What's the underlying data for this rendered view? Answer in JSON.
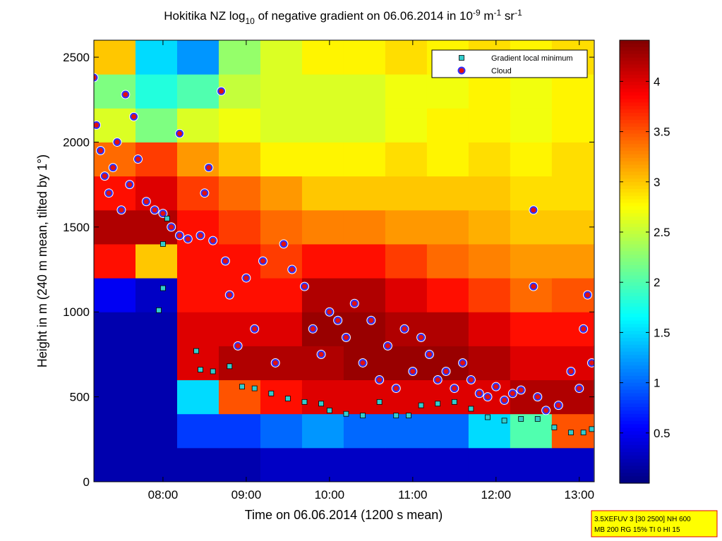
{
  "chart_data": {
    "type": "heatmap",
    "title_segments": [
      "Hokitika NZ log",
      "10",
      " of negative gradient on 06.06.2014 in 10",
      "-9",
      " m",
      "-1",
      " sr",
      "-1"
    ],
    "xlabel": "Time on 06.06.2014 (1200 s mean)",
    "ylabel": "Height in m (240 m mean, tilted by 1°)",
    "xlim": [
      7.17,
      13.18
    ],
    "ylim": [
      0,
      2600
    ],
    "xticks": [
      {
        "value": 8,
        "label": "08:00"
      },
      {
        "value": 9,
        "label": "09:00"
      },
      {
        "value": 10,
        "label": "10:00"
      },
      {
        "value": 11,
        "label": "11:00"
      },
      {
        "value": 12,
        "label": "12:00"
      },
      {
        "value": 13,
        "label": "13:00"
      }
    ],
    "yticks": [
      0,
      500,
      1000,
      1500,
      2000,
      2500
    ],
    "colormap": "jet",
    "clim": [
      0,
      4.41
    ],
    "cticks": [
      0.5,
      1,
      1.5,
      2,
      2.5,
      3,
      3.5,
      4
    ],
    "heatmap": {
      "x": [
        7.42,
        7.92,
        8.42,
        8.92,
        9.42,
        9.92,
        10.42,
        10.92,
        11.42,
        11.92,
        12.42,
        12.92
      ],
      "y": [
        100,
        300,
        500,
        700,
        900,
        1100,
        1300,
        1500,
        1700,
        1900,
        2100,
        2300,
        2500
      ],
      "z": [
        [
          0.2,
          0.2,
          0.2,
          0.2,
          0.3,
          0.3,
          0.3,
          0.3,
          0.3,
          0.3,
          0.3,
          0.3
        ],
        [
          0.2,
          0.2,
          0.8,
          0.8,
          1.0,
          1.2,
          1.0,
          1.0,
          1.0,
          1.5,
          2.0,
          3.5
        ],
        [
          0.2,
          0.2,
          1.5,
          3.5,
          3.8,
          4.0,
          4.0,
          4.0,
          4.0,
          4.0,
          4.2,
          4.2
        ],
        [
          0.2,
          0.2,
          4.0,
          4.2,
          4.2,
          4.2,
          4.3,
          4.3,
          4.3,
          4.2,
          4.0,
          4.0
        ],
        [
          0.2,
          0.2,
          4.0,
          4.0,
          4.0,
          4.3,
          4.3,
          4.2,
          4.2,
          4.0,
          3.8,
          3.8
        ],
        [
          0.5,
          0.3,
          3.8,
          3.8,
          3.8,
          4.2,
          4.2,
          4.0,
          3.8,
          3.6,
          3.4,
          3.5
        ],
        [
          3.8,
          3.0,
          3.8,
          3.8,
          3.6,
          3.8,
          3.8,
          3.6,
          3.4,
          3.3,
          3.2,
          3.2
        ],
        [
          4.2,
          4.2,
          3.8,
          3.6,
          3.4,
          3.3,
          3.3,
          3.2,
          3.2,
          3.1,
          3.0,
          3.0
        ],
        [
          3.8,
          4.0,
          3.6,
          3.4,
          3.2,
          3.0,
          3.0,
          3.0,
          3.0,
          3.0,
          2.9,
          2.9
        ],
        [
          3.4,
          3.6,
          3.2,
          3.0,
          2.8,
          2.8,
          2.8,
          2.9,
          2.8,
          2.9,
          2.8,
          2.9
        ],
        [
          2.6,
          2.2,
          2.6,
          2.7,
          2.6,
          2.6,
          2.6,
          2.7,
          2.8,
          2.8,
          2.7,
          2.8
        ],
        [
          2.2,
          1.8,
          2.0,
          2.5,
          2.6,
          2.6,
          2.6,
          2.7,
          2.7,
          2.8,
          2.7,
          2.8
        ],
        [
          3.0,
          1.5,
          1.2,
          2.3,
          2.6,
          2.8,
          2.8,
          2.9,
          2.8,
          2.9,
          2.8,
          2.9
        ]
      ]
    },
    "series": [
      {
        "name": "Gradient local minimum",
        "marker": "square",
        "color": "#33cccc",
        "x": [
          7.95,
          8.0,
          8.0,
          8.05,
          8.4,
          8.45,
          8.6,
          8.8,
          8.95,
          9.1,
          9.3,
          9.5,
          9.7,
          9.9,
          10.0,
          10.2,
          10.4,
          10.6,
          10.8,
          10.95,
          11.1,
          11.3,
          11.5,
          11.7,
          11.9,
          12.1,
          12.3,
          12.5,
          12.7,
          12.9,
          13.05,
          13.15
        ],
        "values": [
          1010,
          1400,
          1140,
          1550,
          770,
          660,
          650,
          680,
          560,
          550,
          520,
          490,
          470,
          460,
          420,
          400,
          390,
          470,
          390,
          390,
          450,
          460,
          470,
          430,
          380,
          360,
          370,
          370,
          320,
          290,
          290,
          310
        ]
      },
      {
        "name": "Cloud",
        "marker": "circle",
        "color": "#e01010",
        "x": [
          7.17,
          7.2,
          7.25,
          7.3,
          7.35,
          7.4,
          7.45,
          7.5,
          7.55,
          7.6,
          7.65,
          7.7,
          7.8,
          7.9,
          8.0,
          8.1,
          8.2,
          8.2,
          8.3,
          8.45,
          8.5,
          8.55,
          8.6,
          8.7,
          8.75,
          8.8,
          8.9,
          9.0,
          9.1,
          9.2,
          9.35,
          9.45,
          9.55,
          9.7,
          9.8,
          9.9,
          10.0,
          10.1,
          10.2,
          10.3,
          10.4,
          10.5,
          10.6,
          10.7,
          10.8,
          10.9,
          11.0,
          11.1,
          11.2,
          11.3,
          11.4,
          11.5,
          11.6,
          11.7,
          11.8,
          11.9,
          12.0,
          12.1,
          12.2,
          12.3,
          12.45,
          12.45,
          12.5,
          12.6,
          12.75,
          12.9,
          13.0,
          13.05,
          13.1,
          13.15
        ],
        "values": [
          2380,
          2100,
          1950,
          1800,
          1700,
          1850,
          2000,
          1600,
          2280,
          1750,
          2150,
          1900,
          1650,
          1600,
          1580,
          1500,
          1450,
          2050,
          1430,
          1450,
          1700,
          1850,
          1420,
          2300,
          1300,
          1100,
          800,
          1200,
          900,
          1300,
          700,
          1400,
          1250,
          1150,
          900,
          750,
          1000,
          950,
          850,
          1050,
          700,
          950,
          600,
          800,
          550,
          900,
          650,
          850,
          750,
          600,
          650,
          550,
          700,
          600,
          520,
          500,
          560,
          480,
          520,
          540,
          1600,
          1150,
          500,
          420,
          450,
          650,
          550,
          900,
          1100,
          700
        ]
      }
    ],
    "legend": "upper right",
    "annotations": [
      "3.5XEFUV 3 [30 2500] NH 600",
      "MB 200 RG 15% TI 0 HI 15"
    ]
  }
}
